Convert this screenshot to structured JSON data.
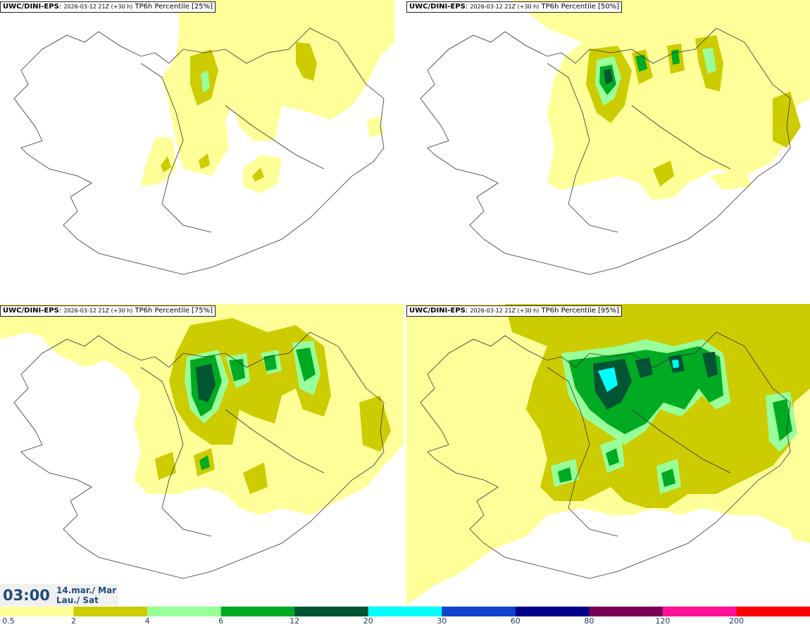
{
  "panels": [
    {
      "model": "UWC/DINI-EPS",
      "run": "2026-03-12 21Z (+30 h)",
      "field": "TP6h Percentile [25%]"
    },
    {
      "model": "UWC/DINI-EPS",
      "run": "2026-03-12 21Z (+30 h)",
      "field": "TP6h Percentile [50%]"
    },
    {
      "model": "UWC/DINI-EPS",
      "run": "2026-03-12 21Z (+30 h)",
      "field": "TP6h Percentile [75%]"
    },
    {
      "model": "UWC/DINI-EPS",
      "run": "2026-03-12 21Z (+30 h)",
      "field": "TP6h Percentile [95%]"
    }
  ],
  "valid_time": {
    "time": "03:00",
    "date_line1": "14.mar./ Mar",
    "date_line2": "Lau./ Sat"
  },
  "legend": {
    "colors": [
      "#ffff99",
      "#cccc00",
      "#99ff99",
      "#00aa22",
      "#005533",
      "#00ffff",
      "#1144cc",
      "#000088",
      "#770055",
      "#ff1199",
      "#ff0000"
    ],
    "ticks": [
      "0.5",
      "2",
      "4",
      "6",
      "12",
      "20",
      "30",
      "60",
      "80",
      "120",
      "200"
    ]
  }
}
